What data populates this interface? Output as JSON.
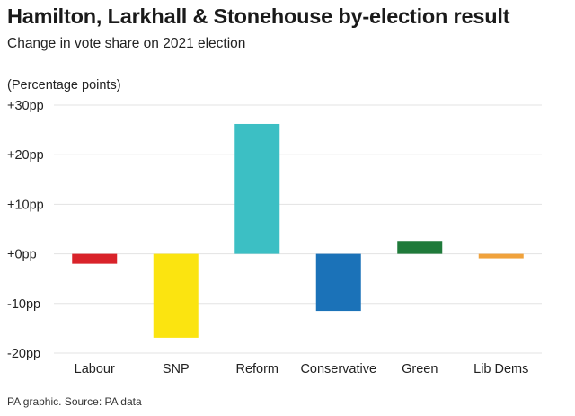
{
  "header": {
    "title": "Hamilton, Larkhall & Stonehouse by-election result",
    "subtitle": "Change in vote share on 2021 election"
  },
  "footer": {
    "source": "PA graphic. Source: PA data"
  },
  "chart_data": {
    "type": "bar",
    "title": "Hamilton, Larkhall & Stonehouse by-election result",
    "subtitle": "Change in vote share on 2021 election",
    "ylabel": "(Percentage points)",
    "xlabel": "",
    "categories": [
      "Labour",
      "SNP",
      "Reform",
      "Conservative",
      "Green",
      "Lib Dems"
    ],
    "values": [
      -2.0,
      -16.9,
      26.2,
      -11.5,
      2.6,
      -0.9
    ],
    "colors": [
      "#d9232a",
      "#fbe410",
      "#3cbfc4",
      "#1b72b8",
      "#1f7a3a",
      "#f0a23c"
    ],
    "ylim": [
      -20,
      30
    ],
    "yticks": [
      30,
      20,
      10,
      0,
      -10,
      -20
    ],
    "ytick_labels": [
      "+30pp",
      "+20pp",
      "+10pp",
      "+0pp",
      "-10pp",
      "-20pp"
    ],
    "grid": true,
    "legend": "none"
  }
}
